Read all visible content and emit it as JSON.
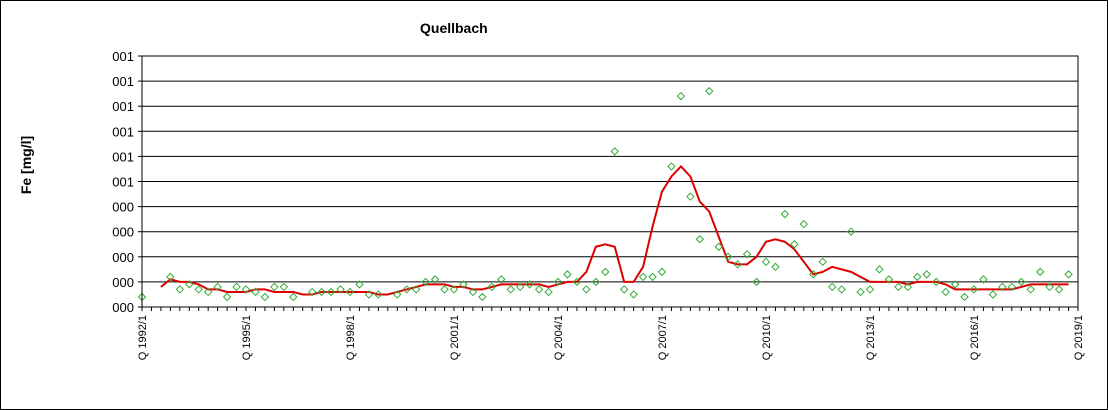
{
  "chart_data": {
    "type": "line",
    "title": "Quellbach",
    "xlabel": "",
    "ylabel": "Fe [mg/l]",
    "y_tick_labels": [
      "000",
      "000",
      "000",
      "000",
      "000",
      "001",
      "001",
      "001",
      "001",
      "001",
      "001"
    ],
    "x_tick_labels": [
      "Q 1992/1",
      "Q 1995/1",
      "Q 1998/1",
      "Q 2001/1",
      "Q 2004/1",
      "Q 2007/1",
      "Q 2010/1",
      "Q 2013/1",
      "Q 2016/1",
      "Q 2019/1"
    ],
    "ylim": [
      0,
      1.0
    ],
    "grid": true,
    "series": [
      {
        "kind": "scatter",
        "color": "#33aa33",
        "points": [
          [
            0,
            0.04
          ],
          [
            3,
            0.12
          ],
          [
            4,
            0.07
          ],
          [
            5,
            0.09
          ],
          [
            6,
            0.07
          ],
          [
            7,
            0.06
          ],
          [
            8,
            0.08
          ],
          [
            9,
            0.04
          ],
          [
            10,
            0.08
          ],
          [
            11,
            0.07
          ],
          [
            12,
            0.06
          ],
          [
            13,
            0.04
          ],
          [
            14,
            0.08
          ],
          [
            15,
            0.08
          ],
          [
            16,
            0.04
          ],
          [
            18,
            0.06
          ],
          [
            19,
            0.06
          ],
          [
            20,
            0.06
          ],
          [
            21,
            0.07
          ],
          [
            22,
            0.06
          ],
          [
            23,
            0.09
          ],
          [
            24,
            0.05
          ],
          [
            25,
            0.05
          ],
          [
            27,
            0.05
          ],
          [
            28,
            0.07
          ],
          [
            29,
            0.07
          ],
          [
            30,
            0.1
          ],
          [
            31,
            0.11
          ],
          [
            32,
            0.07
          ],
          [
            33,
            0.07
          ],
          [
            34,
            0.09
          ],
          [
            35,
            0.06
          ],
          [
            36,
            0.04
          ],
          [
            37,
            0.08
          ],
          [
            38,
            0.11
          ],
          [
            39,
            0.07
          ],
          [
            40,
            0.08
          ],
          [
            41,
            0.09
          ],
          [
            42,
            0.07
          ],
          [
            43,
            0.06
          ],
          [
            44,
            0.1
          ],
          [
            45,
            0.13
          ],
          [
            46,
            0.1
          ],
          [
            47,
            0.07
          ],
          [
            48,
            0.1
          ],
          [
            49,
            0.14
          ],
          [
            50,
            0.62
          ],
          [
            51,
            0.07
          ],
          [
            52,
            0.05
          ],
          [
            53,
            0.12
          ],
          [
            54,
            0.12
          ],
          [
            55,
            0.14
          ],
          [
            56,
            0.56
          ],
          [
            57,
            0.84
          ],
          [
            58,
            0.44
          ],
          [
            59,
            0.27
          ],
          [
            60,
            0.86
          ],
          [
            61,
            0.24
          ],
          [
            62,
            0.2
          ],
          [
            63,
            0.17
          ],
          [
            64,
            0.21
          ],
          [
            65,
            0.1
          ],
          [
            66,
            0.18
          ],
          [
            67,
            0.16
          ],
          [
            68,
            0.37
          ],
          [
            69,
            0.25
          ],
          [
            70,
            0.33
          ],
          [
            71,
            0.13
          ],
          [
            72,
            0.18
          ],
          [
            73,
            0.08
          ],
          [
            74,
            0.07
          ],
          [
            75,
            0.3
          ],
          [
            76,
            0.06
          ],
          [
            77,
            0.07
          ],
          [
            78,
            0.15
          ],
          [
            79,
            0.11
          ],
          [
            80,
            0.08
          ],
          [
            81,
            0.08
          ],
          [
            82,
            0.12
          ],
          [
            83,
            0.13
          ],
          [
            84,
            0.1
          ],
          [
            85,
            0.06
          ],
          [
            86,
            0.09
          ],
          [
            87,
            0.04
          ],
          [
            88,
            0.07
          ],
          [
            89,
            0.11
          ],
          [
            90,
            0.05
          ],
          [
            91,
            0.08
          ],
          [
            92,
            0.08
          ],
          [
            93,
            0.1
          ],
          [
            94,
            0.07
          ],
          [
            95,
            0.14
          ],
          [
            96,
            0.08
          ],
          [
            97,
            0.07
          ],
          [
            98,
            0.13
          ]
        ]
      },
      {
        "kind": "line",
        "color": "#dd0000",
        "points": [
          [
            2,
            0.08
          ],
          [
            3,
            0.11
          ],
          [
            4,
            0.1
          ],
          [
            5,
            0.1
          ],
          [
            6,
            0.09
          ],
          [
            7,
            0.07
          ],
          [
            8,
            0.07
          ],
          [
            9,
            0.06
          ],
          [
            10,
            0.06
          ],
          [
            11,
            0.06
          ],
          [
            12,
            0.07
          ],
          [
            13,
            0.07
          ],
          [
            14,
            0.06
          ],
          [
            15,
            0.06
          ],
          [
            16,
            0.06
          ],
          [
            17,
            0.05
          ],
          [
            18,
            0.05
          ],
          [
            19,
            0.06
          ],
          [
            20,
            0.06
          ],
          [
            21,
            0.06
          ],
          [
            22,
            0.06
          ],
          [
            23,
            0.06
          ],
          [
            24,
            0.06
          ],
          [
            25,
            0.05
          ],
          [
            26,
            0.05
          ],
          [
            27,
            0.06
          ],
          [
            28,
            0.07
          ],
          [
            29,
            0.08
          ],
          [
            30,
            0.09
          ],
          [
            31,
            0.09
          ],
          [
            32,
            0.09
          ],
          [
            33,
            0.08
          ],
          [
            34,
            0.08
          ],
          [
            35,
            0.07
          ],
          [
            36,
            0.07
          ],
          [
            37,
            0.08
          ],
          [
            38,
            0.09
          ],
          [
            39,
            0.09
          ],
          [
            40,
            0.09
          ],
          [
            41,
            0.09
          ],
          [
            42,
            0.09
          ],
          [
            43,
            0.08
          ],
          [
            44,
            0.09
          ],
          [
            45,
            0.1
          ],
          [
            46,
            0.1
          ],
          [
            47,
            0.14
          ],
          [
            48,
            0.24
          ],
          [
            49,
            0.25
          ],
          [
            50,
            0.24
          ],
          [
            51,
            0.1
          ],
          [
            52,
            0.1
          ],
          [
            53,
            0.16
          ],
          [
            54,
            0.32
          ],
          [
            55,
            0.46
          ],
          [
            56,
            0.52
          ],
          [
            57,
            0.56
          ],
          [
            58,
            0.52
          ],
          [
            59,
            0.42
          ],
          [
            60,
            0.38
          ],
          [
            61,
            0.28
          ],
          [
            62,
            0.18
          ],
          [
            63,
            0.17
          ],
          [
            64,
            0.17
          ],
          [
            65,
            0.2
          ],
          [
            66,
            0.26
          ],
          [
            67,
            0.27
          ],
          [
            68,
            0.26
          ],
          [
            69,
            0.23
          ],
          [
            70,
            0.18
          ],
          [
            71,
            0.13
          ],
          [
            72,
            0.14
          ],
          [
            73,
            0.16
          ],
          [
            74,
            0.15
          ],
          [
            75,
            0.14
          ],
          [
            76,
            0.12
          ],
          [
            77,
            0.1
          ],
          [
            78,
            0.1
          ],
          [
            79,
            0.1
          ],
          [
            80,
            0.1
          ],
          [
            81,
            0.09
          ],
          [
            82,
            0.1
          ],
          [
            83,
            0.1
          ],
          [
            84,
            0.1
          ],
          [
            85,
            0.09
          ],
          [
            86,
            0.07
          ],
          [
            87,
            0.07
          ],
          [
            88,
            0.07
          ],
          [
            89,
            0.07
          ],
          [
            90,
            0.07
          ],
          [
            91,
            0.07
          ],
          [
            92,
            0.07
          ],
          [
            93,
            0.08
          ],
          [
            94,
            0.09
          ],
          [
            95,
            0.09
          ],
          [
            96,
            0.09
          ],
          [
            97,
            0.09
          ],
          [
            98,
            0.09
          ]
        ]
      }
    ]
  }
}
